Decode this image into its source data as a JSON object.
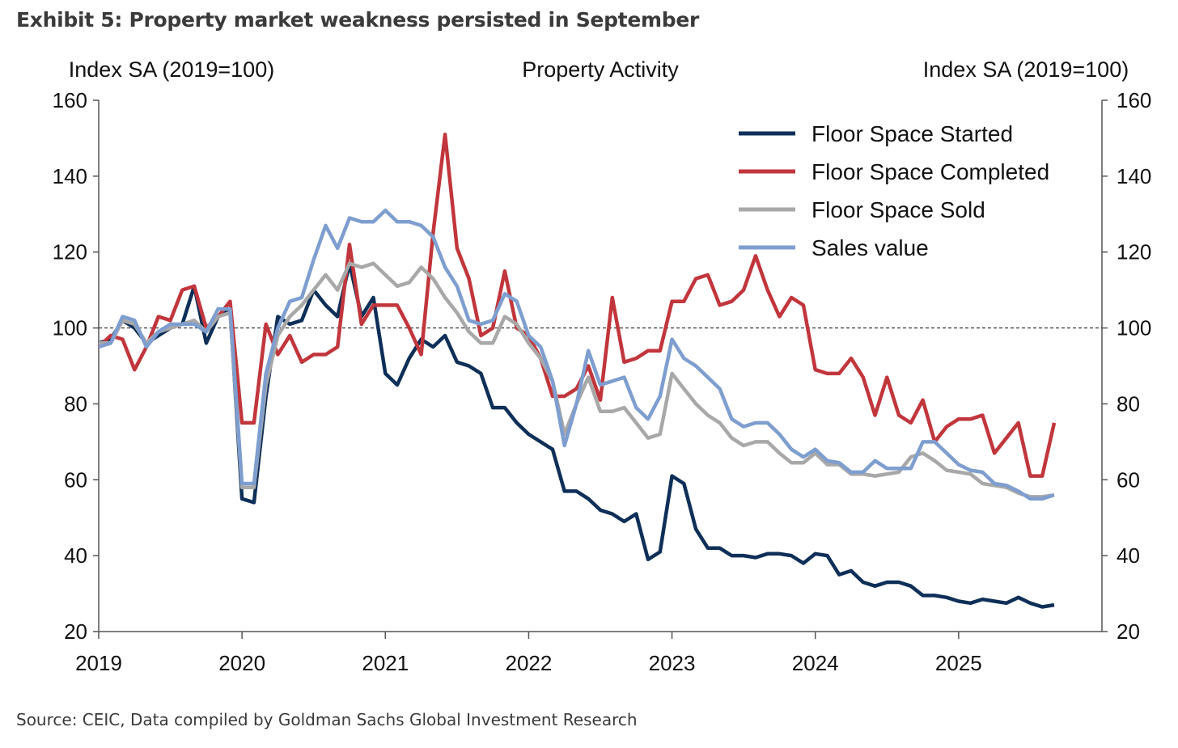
{
  "chart_data": {
    "type": "line",
    "title": "Exhibit 5: Property market weakness persisted in September",
    "subtitle": "Property Activity",
    "ylabel_left": "Index SA (2019=100)",
    "ylabel_right": "Index SA (2019=100)",
    "source": "Source: CEIC, Data compiled by Goldman Sachs Global Investment Research",
    "xlim": [
      2019,
      2026
    ],
    "ylim": [
      20,
      160
    ],
    "x_ticks": [
      "2019",
      "2020",
      "2021",
      "2022",
      "2023",
      "2024",
      "2025"
    ],
    "y_ticks": [
      20,
      40,
      60,
      80,
      100,
      120,
      140,
      160
    ],
    "reference_line": 100,
    "legend_position": "top-right",
    "x_start": "2019-01",
    "frequency": "monthly",
    "series": [
      {
        "name": "Floor Space Started",
        "color": "#0e2f57",
        "values": [
          96,
          97,
          102,
          100,
          96,
          98,
          100,
          101,
          111,
          96,
          103,
          105,
          55,
          54,
          82,
          103,
          101,
          102,
          110,
          106,
          103,
          117,
          103,
          108,
          88,
          85,
          92,
          97,
          95,
          98,
          91,
          90,
          88,
          79,
          79,
          75,
          72,
          70,
          68,
          57,
          57,
          55,
          52,
          51,
          49,
          51,
          39,
          41,
          61,
          59,
          47,
          42,
          42,
          40,
          40,
          39.5,
          40.5,
          40.5,
          40,
          38,
          40.5,
          40,
          35,
          36,
          33,
          32,
          33,
          33,
          32,
          29.5,
          29.5,
          29,
          28,
          27.5,
          28.5,
          28,
          27.5,
          29,
          27.5,
          26.5,
          27
        ]
      },
      {
        "name": "Floor Space Completed",
        "color": "#c1363c",
        "values": [
          95,
          98,
          97,
          89,
          95,
          103,
          102,
          110,
          111,
          100,
          103,
          107,
          75,
          75,
          101,
          93,
          98,
          91,
          93,
          93,
          95,
          122,
          101,
          106,
          106,
          106,
          100,
          93,
          125,
          151,
          121,
          113,
          98,
          100,
          115,
          100,
          98,
          92,
          82,
          82,
          84,
          90,
          81,
          108,
          91,
          92,
          94,
          94,
          107,
          107,
          113,
          114,
          106,
          107,
          110,
          119,
          110,
          103,
          108,
          106,
          89,
          88,
          88,
          92,
          87,
          77,
          87,
          77,
          75,
          81,
          70,
          74,
          76,
          76,
          77,
          67,
          71,
          75,
          61,
          61,
          75
        ]
      },
      {
        "name": "Floor Space Sold",
        "color": "#a8a8a8",
        "values": [
          96,
          96,
          102,
          101,
          96,
          99,
          100,
          101,
          102,
          99,
          103,
          104,
          58,
          58,
          85,
          98,
          103,
          106,
          110,
          114,
          110,
          117,
          116,
          117,
          114,
          111,
          112,
          116,
          113,
          108,
          104,
          99,
          96,
          96,
          103,
          101,
          96,
          92,
          86,
          72,
          80,
          87,
          78,
          78,
          79,
          75,
          71,
          72,
          88,
          84,
          80,
          77,
          75,
          71,
          69,
          70,
          70,
          67,
          64.5,
          64.5,
          67,
          64,
          64,
          61.5,
          61.5,
          61,
          61.5,
          62,
          66,
          67,
          65,
          62.5,
          62,
          61.5,
          59,
          58.5,
          58,
          56.5,
          55.5,
          55.5,
          56
        ]
      },
      {
        "name": "Sales value",
        "color": "#7e9ecf",
        "values": [
          95,
          96,
          103,
          102,
          95,
          99,
          101,
          101,
          101,
          99,
          105,
          105,
          59,
          59,
          88,
          100,
          107,
          108,
          118,
          127,
          121,
          129,
          128,
          128,
          131,
          128,
          128,
          127,
          124,
          116,
          111,
          102,
          101,
          102,
          109,
          107,
          98,
          95,
          86,
          69,
          80,
          94,
          85,
          86,
          87,
          79,
          76,
          82,
          97,
          92,
          90,
          87,
          84,
          76,
          74,
          75,
          75,
          72,
          68,
          66,
          68,
          65,
          64.5,
          62,
          62,
          65,
          63,
          63,
          63,
          70,
          70,
          67,
          64,
          62.5,
          62,
          59,
          58.5,
          57,
          55,
          55,
          56
        ]
      }
    ]
  }
}
